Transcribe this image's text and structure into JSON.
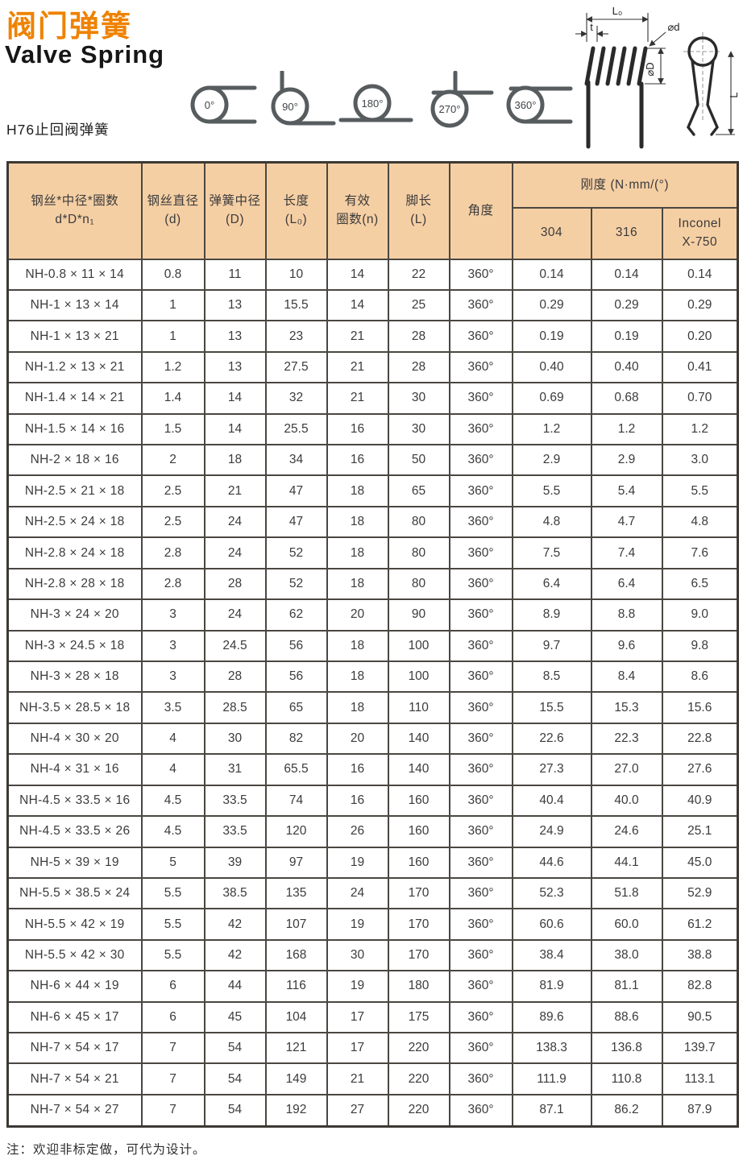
{
  "page": {
    "title_zh": "阀门弹簧",
    "title_en": "Valve Spring",
    "series_label": "H76止回阀弹簧",
    "note": "注：欢迎非标定做，可代为设计。"
  },
  "colors": {
    "accent_orange": "#ef8200",
    "table_header_bg": "#f5cfa4",
    "table_border": "#4a4741",
    "spring_gray": "#575c5f"
  },
  "diagrams": {
    "angle_labels": [
      "0°",
      "90°",
      "180°",
      "270°",
      "360°"
    ],
    "dimension_labels": {
      "l0": "L₀",
      "t": "t",
      "wire_d": "⌀d",
      "coil_d": "⌀D",
      "leg_l": "L"
    }
  },
  "table": {
    "headers": {
      "model": "钢丝*中径*圈数\nd*D*n₁",
      "wire_diameter": "钢丝直径\n(d)",
      "mean_diameter": "弹簧中径\n(D)",
      "length": "长度\n(L₀)",
      "active_coils": "有效\n圈数(n)",
      "leg_length": "脚长\n(L)",
      "angle": "角度",
      "stiffness_group": "刚度 (N·mm/(°)",
      "stiffness_304": "304",
      "stiffness_316": "316",
      "stiffness_inconel": "Inconel\nX-750"
    },
    "rows": [
      [
        "NH-0.8 × 11 × 14",
        "0.8",
        "11",
        "10",
        "14",
        "22",
        "360°",
        "0.14",
        "0.14",
        "0.14"
      ],
      [
        "NH-1 × 13 × 14",
        "1",
        "13",
        "15.5",
        "14",
        "25",
        "360°",
        "0.29",
        "0.29",
        "0.29"
      ],
      [
        "NH-1 × 13 × 21",
        "1",
        "13",
        "23",
        "21",
        "28",
        "360°",
        "0.19",
        "0.19",
        "0.20"
      ],
      [
        "NH-1.2 × 13 × 21",
        "1.2",
        "13",
        "27.5",
        "21",
        "28",
        "360°",
        "0.40",
        "0.40",
        "0.41"
      ],
      [
        "NH-1.4 × 14 × 21",
        "1.4",
        "14",
        "32",
        "21",
        "30",
        "360°",
        "0.69",
        "0.68",
        "0.70"
      ],
      [
        "NH-1.5 × 14 × 16",
        "1.5",
        "14",
        "25.5",
        "16",
        "30",
        "360°",
        "1.2",
        "1.2",
        "1.2"
      ],
      [
        "NH-2 × 18 × 16",
        "2",
        "18",
        "34",
        "16",
        "50",
        "360°",
        "2.9",
        "2.9",
        "3.0"
      ],
      [
        "NH-2.5 × 21 × 18",
        "2.5",
        "21",
        "47",
        "18",
        "65",
        "360°",
        "5.5",
        "5.4",
        "5.5"
      ],
      [
        "NH-2.5 × 24 × 18",
        "2.5",
        "24",
        "47",
        "18",
        "80",
        "360°",
        "4.8",
        "4.7",
        "4.8"
      ],
      [
        "NH-2.8 × 24 × 18",
        "2.8",
        "24",
        "52",
        "18",
        "80",
        "360°",
        "7.5",
        "7.4",
        "7.6"
      ],
      [
        "NH-2.8 × 28 × 18",
        "2.8",
        "28",
        "52",
        "18",
        "80",
        "360°",
        "6.4",
        "6.4",
        "6.5"
      ],
      [
        "NH-3 × 24 × 20",
        "3",
        "24",
        "62",
        "20",
        "90",
        "360°",
        "8.9",
        "8.8",
        "9.0"
      ],
      [
        "NH-3 × 24.5 × 18",
        "3",
        "24.5",
        "56",
        "18",
        "100",
        "360°",
        "9.7",
        "9.6",
        "9.8"
      ],
      [
        "NH-3 × 28 × 18",
        "3",
        "28",
        "56",
        "18",
        "100",
        "360°",
        "8.5",
        "8.4",
        "8.6"
      ],
      [
        "NH-3.5 × 28.5 × 18",
        "3.5",
        "28.5",
        "65",
        "18",
        "110",
        "360°",
        "15.5",
        "15.3",
        "15.6"
      ],
      [
        "NH-4 × 30 × 20",
        "4",
        "30",
        "82",
        "20",
        "140",
        "360°",
        "22.6",
        "22.3",
        "22.8"
      ],
      [
        "NH-4 × 31 × 16",
        "4",
        "31",
        "65.5",
        "16",
        "140",
        "360°",
        "27.3",
        "27.0",
        "27.6"
      ],
      [
        "NH-4.5 × 33.5 × 16",
        "4.5",
        "33.5",
        "74",
        "16",
        "160",
        "360°",
        "40.4",
        "40.0",
        "40.9"
      ],
      [
        "NH-4.5 × 33.5 × 26",
        "4.5",
        "33.5",
        "120",
        "26",
        "160",
        "360°",
        "24.9",
        "24.6",
        "25.1"
      ],
      [
        "NH-5 × 39 × 19",
        "5",
        "39",
        "97",
        "19",
        "160",
        "360°",
        "44.6",
        "44.1",
        "45.0"
      ],
      [
        "NH-5.5 × 38.5 × 24",
        "5.5",
        "38.5",
        "135",
        "24",
        "170",
        "360°",
        "52.3",
        "51.8",
        "52.9"
      ],
      [
        "NH-5.5 × 42 × 19",
        "5.5",
        "42",
        "107",
        "19",
        "170",
        "360°",
        "60.6",
        "60.0",
        "61.2"
      ],
      [
        "NH-5.5 × 42 × 30",
        "5.5",
        "42",
        "168",
        "30",
        "170",
        "360°",
        "38.4",
        "38.0",
        "38.8"
      ],
      [
        "NH-6 × 44 × 19",
        "6",
        "44",
        "116",
        "19",
        "180",
        "360°",
        "81.9",
        "81.1",
        "82.8"
      ],
      [
        "NH-6 × 45 × 17",
        "6",
        "45",
        "104",
        "17",
        "175",
        "360°",
        "89.6",
        "88.6",
        "90.5"
      ],
      [
        "NH-7 × 54 × 17",
        "7",
        "54",
        "121",
        "17",
        "220",
        "360°",
        "138.3",
        "136.8",
        "139.7"
      ],
      [
        "NH-7 × 54 × 21",
        "7",
        "54",
        "149",
        "21",
        "220",
        "360°",
        "111.9",
        "110.8",
        "113.1"
      ],
      [
        "NH-7 × 54 × 27",
        "7",
        "54",
        "192",
        "27",
        "220",
        "360°",
        "87.1",
        "86.2",
        "87.9"
      ]
    ]
  }
}
